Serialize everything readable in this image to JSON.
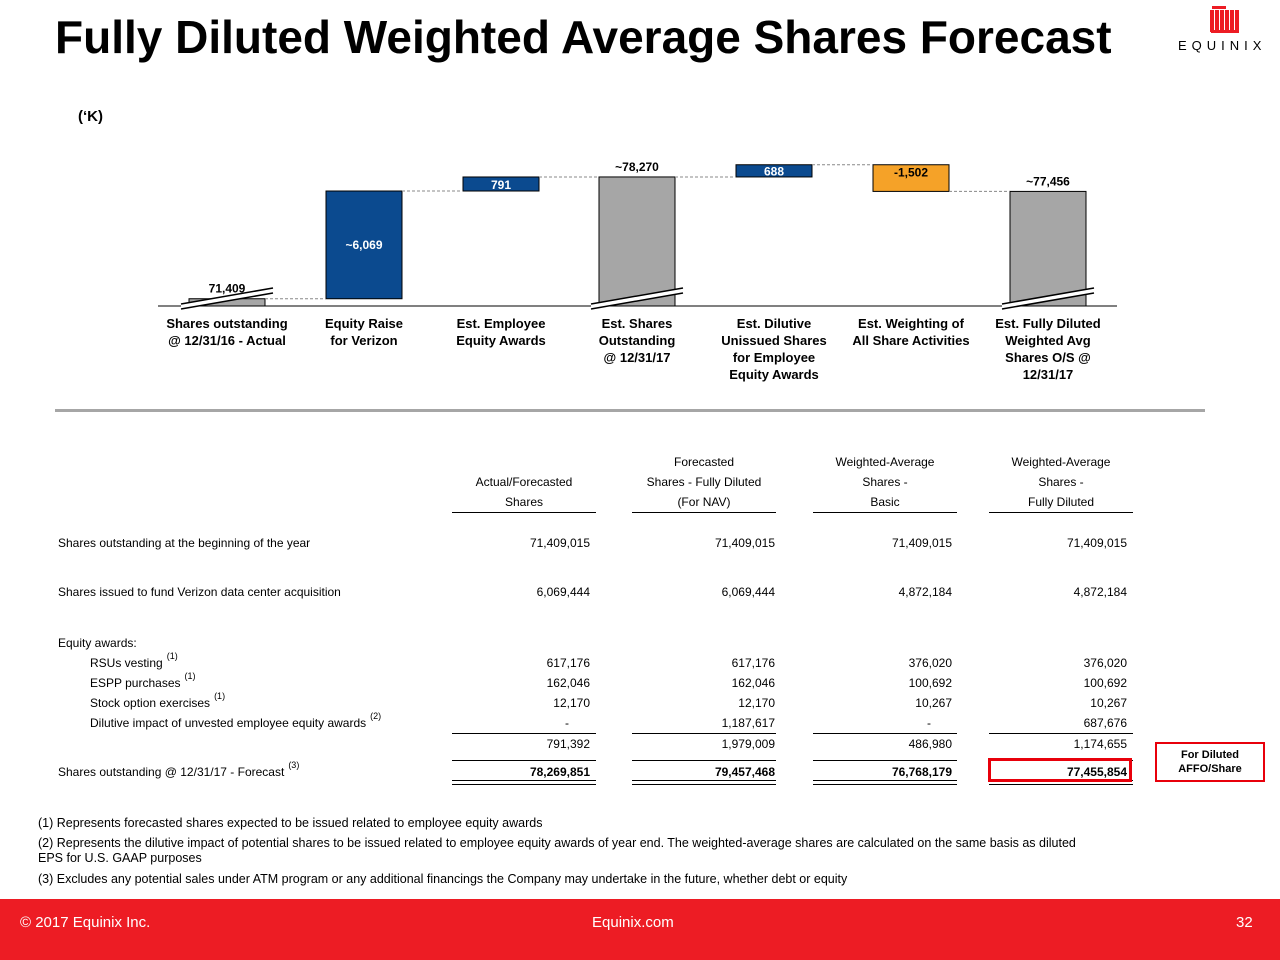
{
  "title": "Fully Diluted Weighted Average Shares Forecast",
  "brand": {
    "name": "EQUINIX",
    "color": "#ed1c24"
  },
  "units_label": "(‘K)",
  "chart_data": {
    "type": "waterfall",
    "categories": [
      [
        "Shares outstanding",
        "@ 12/31/16 - Actual"
      ],
      [
        "Equity Raise",
        "for Verizon"
      ],
      [
        "Est. Employee",
        "Equity Awards"
      ],
      [
        "Est. Shares",
        "Outstanding",
        "@ 12/31/17"
      ],
      [
        "Est. Dilutive",
        "Unissued Shares",
        "for Employee",
        "Equity Awards"
      ],
      [
        "Est. Weighting of",
        "All Share Activities"
      ],
      [
        "Est. Fully Diluted",
        "Weighted Avg",
        "Shares O/S @",
        "12/31/17"
      ]
    ],
    "values": [
      71409,
      6069,
      791,
      78270,
      688,
      -1502,
      77456
    ],
    "bar_kinds": [
      "total",
      "increase",
      "increase",
      "total",
      "increase",
      "decrease",
      "total"
    ],
    "data_labels": [
      "71,409",
      "~6,069",
      "791",
      "~78,270",
      "688",
      "-1,502",
      "~77,456"
    ],
    "colors": {
      "total": "#a6a6a6",
      "increase": "#0b4a8f",
      "decrease": "#f5a228"
    },
    "axis_break": true
  },
  "table": {
    "headers": [
      [
        "",
        "Actual/Forecasted",
        "Shares"
      ],
      [
        "Forecasted",
        "Shares - Fully Diluted",
        "(For NAV)"
      ],
      [
        "Weighted-Average",
        "Shares -",
        "Basic"
      ],
      [
        "Weighted-Average",
        "Shares -",
        "Fully Diluted"
      ]
    ],
    "rows": [
      {
        "label": "Shares outstanding at the beginning of the year",
        "sup": "",
        "values": [
          "71,409,015",
          "71,409,015",
          "71,409,015",
          "71,409,015"
        ]
      },
      {
        "label": "Shares issued to fund Verizon data center acquisition",
        "sup": "",
        "values": [
          "6,069,444",
          "6,069,444",
          "4,872,184",
          "4,872,184"
        ]
      },
      {
        "label": "Equity awards:",
        "sup": "",
        "values": [
          "",
          "",
          "",
          ""
        ]
      },
      {
        "label": "RSUs vesting",
        "sup": "(1)",
        "values": [
          "617,176",
          "617,176",
          "376,020",
          "376,020"
        ]
      },
      {
        "label": "ESPP purchases",
        "sup": "(1)",
        "values": [
          "162,046",
          "162,046",
          "100,692",
          "100,692"
        ]
      },
      {
        "label": "Stock option exercises",
        "sup": "(1)",
        "values": [
          "12,170",
          "12,170",
          "10,267",
          "10,267"
        ]
      },
      {
        "label": "Dilutive impact of unvested employee equity awards",
        "sup": "(2)",
        "values": [
          "-",
          "1,187,617",
          "-",
          "687,676"
        ]
      },
      {
        "label": "",
        "sup": "",
        "values": [
          "791,392",
          "1,979,009",
          "486,980",
          "1,174,655"
        ]
      },
      {
        "label": "Shares outstanding @ 12/31/17 - Forecast",
        "sup": "(3)",
        "values": [
          "78,269,851",
          "79,457,468",
          "76,768,179",
          "77,455,854"
        ]
      }
    ]
  },
  "callout": {
    "line1": "For Diluted",
    "line2": "AFFO/Share"
  },
  "footnotes": [
    "(1)  Represents forecasted shares expected to be issued related to employee equity awards",
    "(2)  Represents the dilutive impact of potential shares to be issued related to employee equity awards of year end. The weighted-average shares are calculated on the same basis as diluted",
    "       EPS for U.S. GAAP purposes",
    "(3)  Excludes any potential sales under ATM program or any additional financings the Company may undertake in the future, whether debt or equity"
  ],
  "footer": {
    "copyright": "© 2017 Equinix Inc.",
    "site": "Equinix.com",
    "page": "32"
  }
}
